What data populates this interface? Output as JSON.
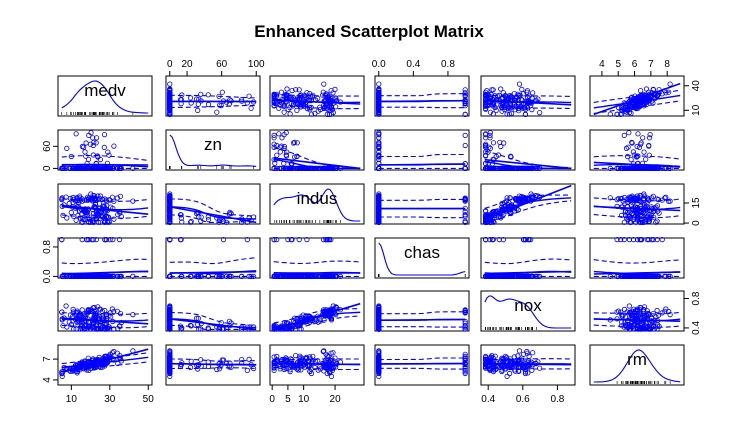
{
  "chart_data": {
    "type": "scatter-matrix",
    "title": "Enhanced Scatterplot Matrix",
    "variables": [
      "medv",
      "zn",
      "indus",
      "chas",
      "nox",
      "rm"
    ],
    "ranges": {
      "medv": [
        5,
        50
      ],
      "zn": [
        0,
        100
      ],
      "indus": [
        0.5,
        28
      ],
      "chas": [
        0,
        1
      ],
      "nox": [
        0.38,
        0.88
      ],
      "rm": [
        3.5,
        8.8
      ]
    },
    "ticks": {
      "medv": [
        10,
        30,
        50
      ],
      "zn": [
        0,
        20,
        60,
        100
      ],
      "indus": [
        0,
        5,
        10,
        20
      ],
      "chas": [
        0.0,
        0.4,
        0.8
      ],
      "nox": [
        0.4,
        0.6,
        0.8
      ],
      "rm": [
        4,
        5,
        6,
        7,
        8
      ]
    },
    "tick_labels": {
      "bottom": [
        {
          "var": "medv",
          "values": [
            10,
            30,
            50
          ]
        },
        {
          "var": "indus",
          "values": [
            0,
            5,
            10,
            20
          ]
        },
        {
          "var": "nox",
          "values": [
            0.4,
            0.6,
            0.8
          ]
        }
      ],
      "top": [
        {
          "var": "zn",
          "values": [
            0,
            20,
            60,
            100
          ]
        },
        {
          "var": "chas",
          "values": [
            0.0,
            0.4,
            0.8
          ]
        },
        {
          "var": "rm",
          "values": [
            4,
            5,
            6,
            7,
            8
          ]
        }
      ],
      "left": [
        {
          "var": "zn",
          "values": [
            0,
            60
          ]
        },
        {
          "var": "chas",
          "values": [
            0.0,
            0.8
          ]
        },
        {
          "var": "rm",
          "values": [
            4,
            7
          ]
        }
      ],
      "right": [
        {
          "var": "medv",
          "values": [
            10,
            40
          ]
        },
        {
          "var": "indus",
          "values": [
            0,
            15
          ]
        },
        {
          "var": "nox",
          "values": [
            0.4,
            0.8
          ]
        }
      ]
    },
    "grid": false,
    "legend": "none",
    "colors": {
      "points": "#0000ff",
      "lines": "#0000ff",
      "rug": "#000000",
      "frame": "#000000"
    }
  }
}
